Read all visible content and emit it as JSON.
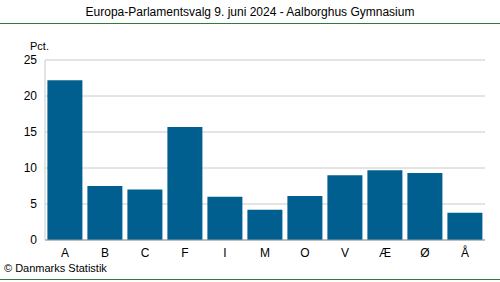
{
  "chart_data": {
    "type": "bar",
    "title": "Europa-Parlamentsvalg 9. juni 2024 - Aalborghus Gymnasium",
    "y_label": "Pct.",
    "source": "© Danmarks Statistik",
    "categories": [
      "A",
      "B",
      "C",
      "F",
      "I",
      "M",
      "O",
      "V",
      "Æ",
      "Ø",
      "Å"
    ],
    "values": [
      22.2,
      7.5,
      7.0,
      15.7,
      6.0,
      4.2,
      6.1,
      9.0,
      9.7,
      9.3,
      3.8
    ],
    "color": "#005f8f",
    "ylim": [
      0,
      25
    ],
    "yticks": [
      0,
      5,
      10,
      15,
      20,
      25
    ],
    "grid": true
  }
}
